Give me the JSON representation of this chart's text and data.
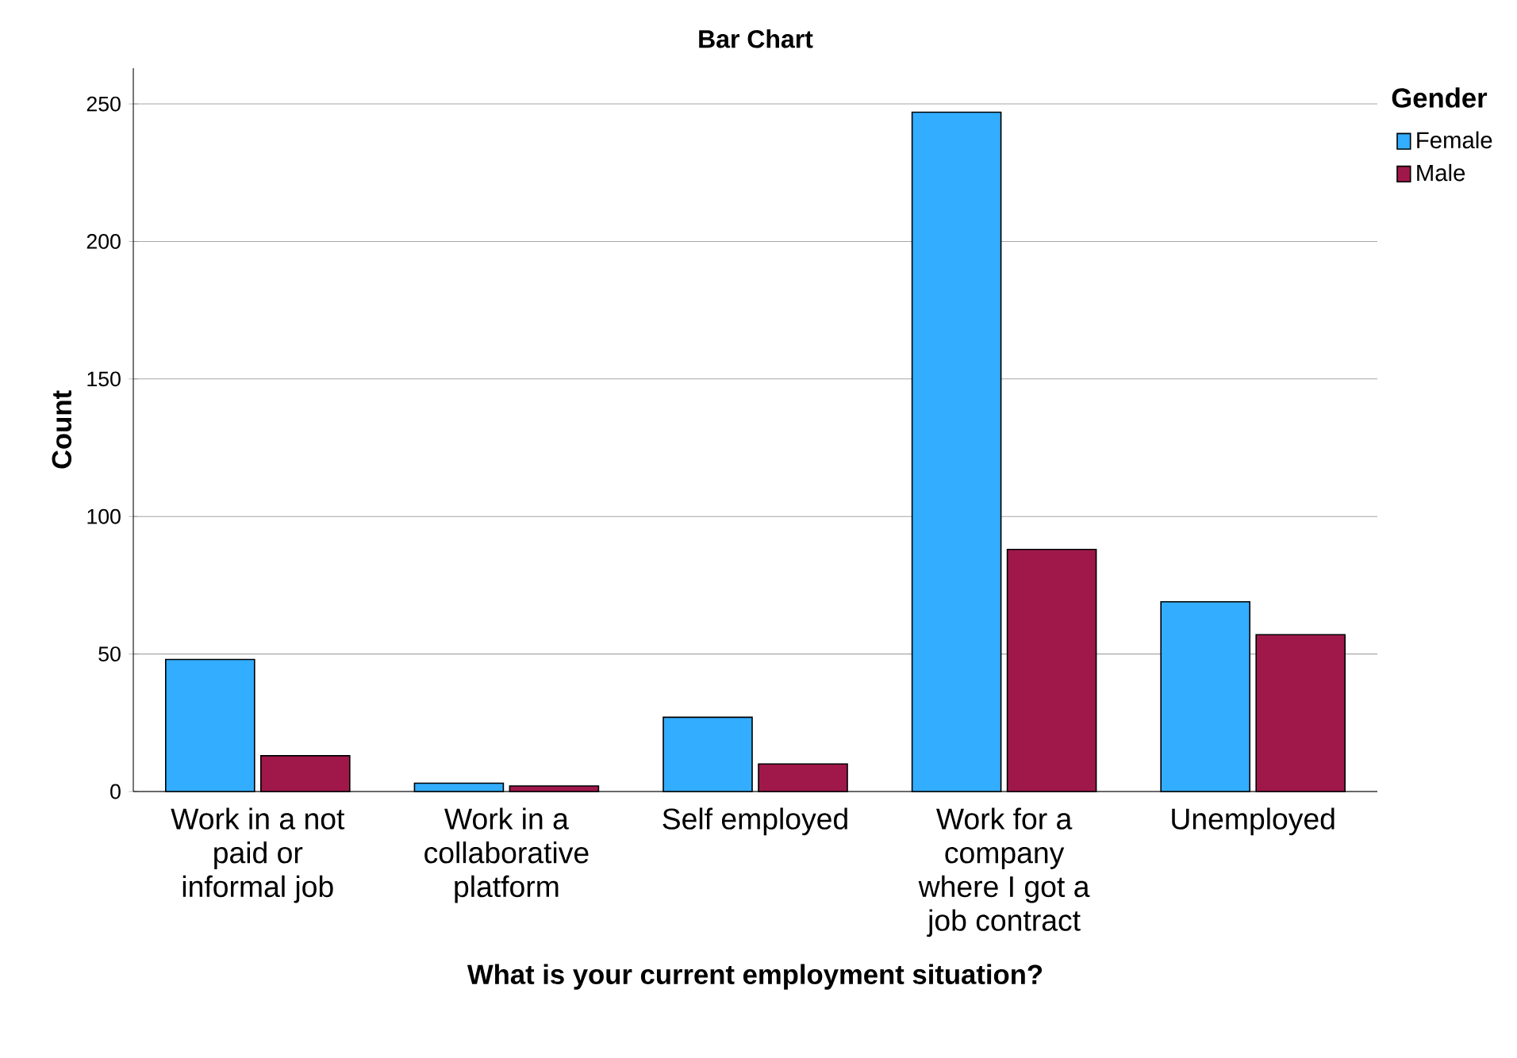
{
  "chart_data": {
    "type": "bar",
    "title": "Bar Chart",
    "xlabel": "What is your current employment situation?",
    "ylabel": "Count",
    "legend_title": "Gender",
    "categories": [
      "Work in a not paid or informal job",
      "Work in a collaborative platform",
      "Self employed",
      "Work for a company where I got a job contract",
      "Unemployed"
    ],
    "series": [
      {
        "name": "Female",
        "color": "#33adff",
        "values": [
          48,
          3,
          27,
          247,
          69
        ]
      },
      {
        "name": "Male",
        "color": "#a0184a",
        "values": [
          13,
          2,
          10,
          88,
          57
        ]
      }
    ],
    "ylim": [
      0,
      263
    ],
    "yticks": [
      0,
      50,
      100,
      150,
      200,
      250
    ],
    "grid": "y",
    "legend": "top right"
  }
}
